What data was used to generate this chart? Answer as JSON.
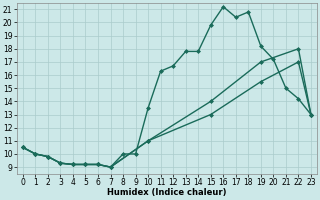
{
  "title": "",
  "xlabel": "Humidex (Indice chaleur)",
  "background_color": "#cce8e8",
  "grid_color": "#aacccc",
  "line_color": "#1a6b5a",
  "xlim": [
    -0.5,
    23.5
  ],
  "ylim": [
    8.5,
    21.5
  ],
  "xticks": [
    0,
    1,
    2,
    3,
    4,
    5,
    6,
    7,
    8,
    9,
    10,
    11,
    12,
    13,
    14,
    15,
    16,
    17,
    18,
    19,
    20,
    21,
    22,
    23
  ],
  "yticks": [
    9,
    10,
    11,
    12,
    13,
    14,
    15,
    16,
    17,
    18,
    19,
    20,
    21
  ],
  "line1_x": [
    0,
    1,
    2,
    3,
    4,
    5,
    6,
    7,
    8,
    9,
    10,
    11,
    12,
    13,
    14,
    15,
    16,
    17,
    18,
    19,
    20,
    21,
    22,
    23
  ],
  "line1_y": [
    10.5,
    10.0,
    9.8,
    9.3,
    9.2,
    9.2,
    9.2,
    9.0,
    10.0,
    10.0,
    13.5,
    16.3,
    16.7,
    17.8,
    17.8,
    19.8,
    21.2,
    20.4,
    20.8,
    18.2,
    17.2,
    15.0,
    14.2,
    13.0
  ],
  "line2_x": [
    0,
    1,
    2,
    3,
    4,
    5,
    6,
    7,
    10,
    15,
    19,
    22,
    23
  ],
  "line2_y": [
    10.5,
    10.0,
    9.8,
    9.3,
    9.2,
    9.2,
    9.2,
    9.0,
    11.0,
    14.0,
    17.0,
    18.0,
    13.0
  ],
  "line3_x": [
    0,
    1,
    2,
    3,
    4,
    5,
    6,
    7,
    10,
    15,
    19,
    22,
    23
  ],
  "line3_y": [
    10.5,
    10.0,
    9.8,
    9.3,
    9.2,
    9.2,
    9.2,
    9.0,
    11.0,
    13.0,
    15.5,
    17.0,
    13.0
  ],
  "marker": "D",
  "markersize": 2,
  "linewidth": 1.0,
  "fontsize_label": 6,
  "fontsize_tick": 5.5
}
